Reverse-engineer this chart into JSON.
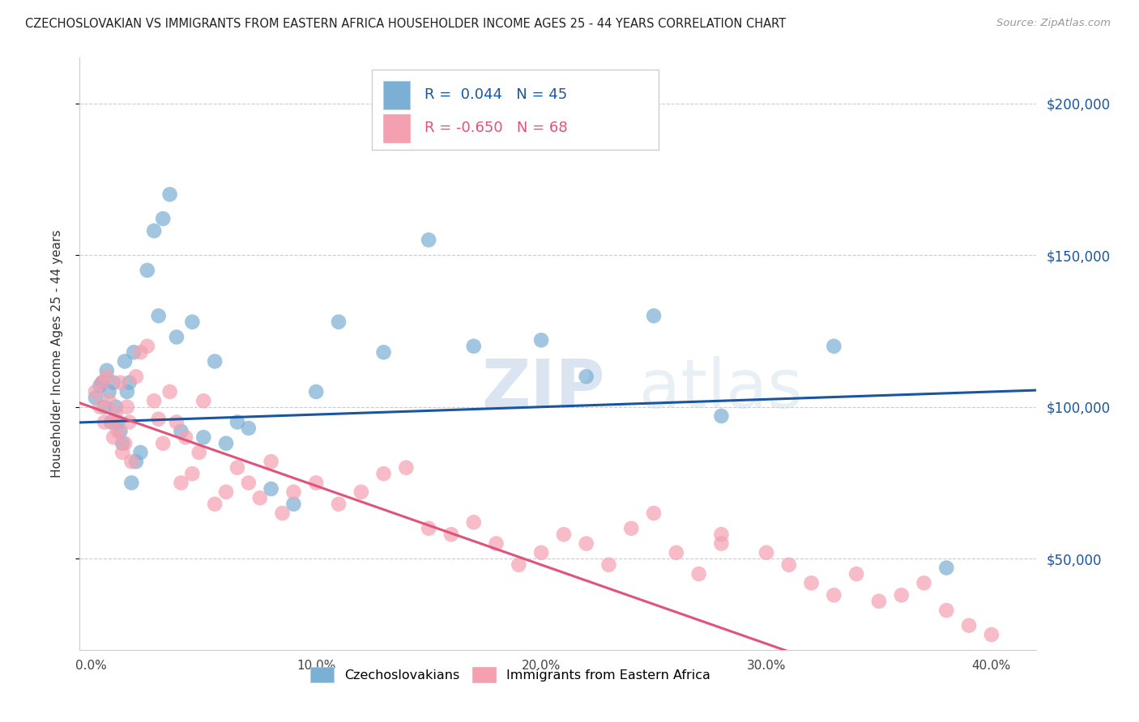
{
  "title": "CZECHOSLOVAKIAN VS IMMIGRANTS FROM EASTERN AFRICA HOUSEHOLDER INCOME AGES 25 - 44 YEARS CORRELATION CHART",
  "source": "Source: ZipAtlas.com",
  "ylabel": "Householder Income Ages 25 - 44 years",
  "xlabel_ticks": [
    "0.0%",
    "10.0%",
    "20.0%",
    "30.0%",
    "40.0%"
  ],
  "xlabel_vals": [
    0.0,
    0.1,
    0.2,
    0.3,
    0.4
  ],
  "ytick_labels": [
    "$200,000",
    "$150,000",
    "$100,000",
    "$50,000"
  ],
  "ytick_vals": [
    200000,
    150000,
    100000,
    50000
  ],
  "ylim": [
    20000,
    215000
  ],
  "xlim": [
    -0.005,
    0.42
  ],
  "background_color": "#ffffff",
  "grid_color": "#cccccc",
  "blue_color": "#7bafd4",
  "pink_color": "#f4a0b0",
  "blue_line_color": "#1a56a0",
  "pink_line_color": "#e0537a",
  "watermark_zip": "ZIP",
  "watermark_atlas": "atlas",
  "legend_R_blue": "0.044",
  "legend_N_blue": "45",
  "legend_R_pink": "-0.650",
  "legend_N_pink": "68",
  "legend_label_blue": "Czechoslovakians",
  "legend_label_pink": "Immigrants from Eastern Africa",
  "blue_x": [
    0.002,
    0.004,
    0.005,
    0.006,
    0.007,
    0.008,
    0.009,
    0.01,
    0.011,
    0.012,
    0.013,
    0.014,
    0.015,
    0.016,
    0.017,
    0.018,
    0.019,
    0.02,
    0.022,
    0.025,
    0.028,
    0.03,
    0.032,
    0.035,
    0.038,
    0.04,
    0.045,
    0.05,
    0.055,
    0.06,
    0.065,
    0.07,
    0.08,
    0.09,
    0.1,
    0.11,
    0.13,
    0.15,
    0.17,
    0.2,
    0.22,
    0.25,
    0.28,
    0.33,
    0.38
  ],
  "blue_y": [
    103000,
    107000,
    108000,
    100000,
    112000,
    105000,
    95000,
    108000,
    100000,
    95000,
    92000,
    88000,
    115000,
    105000,
    108000,
    75000,
    118000,
    82000,
    85000,
    145000,
    158000,
    130000,
    162000,
    170000,
    123000,
    92000,
    128000,
    90000,
    115000,
    88000,
    95000,
    93000,
    73000,
    68000,
    105000,
    128000,
    118000,
    155000,
    120000,
    122000,
    110000,
    130000,
    97000,
    120000,
    47000
  ],
  "pink_x": [
    0.002,
    0.004,
    0.005,
    0.006,
    0.007,
    0.008,
    0.009,
    0.01,
    0.011,
    0.012,
    0.013,
    0.014,
    0.015,
    0.016,
    0.017,
    0.018,
    0.02,
    0.022,
    0.025,
    0.028,
    0.03,
    0.032,
    0.035,
    0.038,
    0.04,
    0.042,
    0.045,
    0.048,
    0.05,
    0.055,
    0.06,
    0.065,
    0.07,
    0.075,
    0.08,
    0.085,
    0.09,
    0.1,
    0.11,
    0.12,
    0.13,
    0.14,
    0.15,
    0.16,
    0.17,
    0.18,
    0.19,
    0.2,
    0.21,
    0.22,
    0.23,
    0.24,
    0.25,
    0.26,
    0.27,
    0.28,
    0.3,
    0.32,
    0.34,
    0.36,
    0.37,
    0.38,
    0.39,
    0.4,
    0.33,
    0.35,
    0.28,
    0.31
  ],
  "pink_y": [
    105000,
    100000,
    108000,
    95000,
    110000,
    102000,
    95000,
    90000,
    98000,
    92000,
    108000,
    85000,
    88000,
    100000,
    95000,
    82000,
    110000,
    118000,
    120000,
    102000,
    96000,
    88000,
    105000,
    95000,
    75000,
    90000,
    78000,
    85000,
    102000,
    68000,
    72000,
    80000,
    75000,
    70000,
    82000,
    65000,
    72000,
    75000,
    68000,
    72000,
    78000,
    80000,
    60000,
    58000,
    62000,
    55000,
    48000,
    52000,
    58000,
    55000,
    48000,
    60000,
    65000,
    52000,
    45000,
    58000,
    52000,
    42000,
    45000,
    38000,
    42000,
    33000,
    28000,
    25000,
    38000,
    36000,
    55000,
    48000
  ]
}
